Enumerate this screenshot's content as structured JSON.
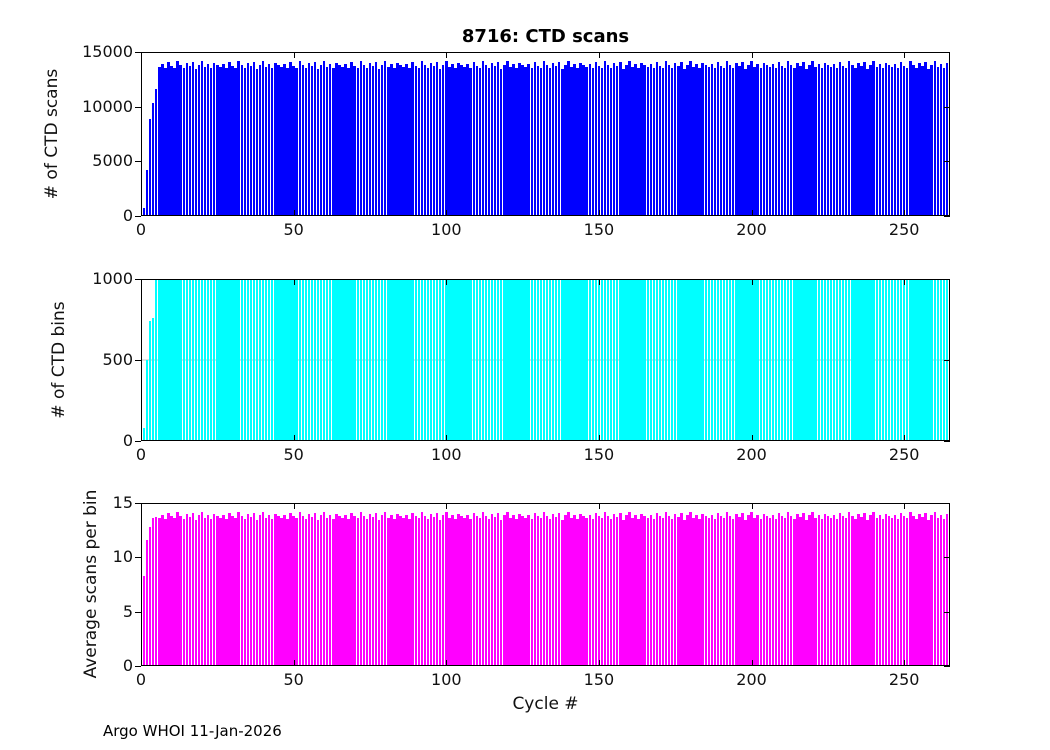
{
  "figure": {
    "title": "8716: CTD scans",
    "xlabel": "Cycle #",
    "footer": "Argo WHOI 11-Jan-2026",
    "x_ticks": [
      0,
      50,
      100,
      150,
      200,
      250
    ],
    "xlim": [
      0,
      265
    ],
    "background": "#ffffff",
    "axis_color": "#000000"
  },
  "chart_data": [
    {
      "type": "bar",
      "name": "ctd-scans",
      "title": "8716: CTD scans",
      "ylabel": "# of CTD scans",
      "color": "#0000ff",
      "ylim": [
        0,
        15000
      ],
      "yticks": [
        0,
        5000,
        10000,
        15000
      ],
      "grid": false,
      "values": [
        700,
        4200,
        8900,
        10300,
        11600,
        13650,
        13900,
        13520,
        14100,
        13760,
        13580,
        14200,
        13820,
        13540,
        13960,
        13700,
        14060,
        13470,
        13850,
        14150,
        13620,
        13920,
        13560,
        14010,
        13780,
        13650,
        13900,
        13520,
        14100,
        13760,
        13580,
        14200,
        13820,
        13540,
        13960,
        13700,
        14060,
        13470,
        13850,
        14150,
        13620,
        13920,
        13560,
        14010,
        13780,
        13650,
        13900,
        13520,
        14100,
        13760,
        13580,
        14200,
        13820,
        13540,
        13960,
        13700,
        14060,
        13470,
        13850,
        14150,
        13620,
        13920,
        13560,
        14010,
        13780,
        13650,
        13900,
        13520,
        14100,
        13760,
        13580,
        14200,
        13820,
        13540,
        13960,
        13700,
        14060,
        13470,
        13850,
        14150,
        13620,
        13920,
        13560,
        14010,
        13780,
        13650,
        13900,
        13520,
        14100,
        13760,
        13580,
        14200,
        13820,
        13540,
        13960,
        13700,
        14060,
        13470,
        13850,
        14150,
        13620,
        13920,
        13560,
        14010,
        13780,
        13650,
        13900,
        13520,
        14100,
        13760,
        13580,
        14200,
        13820,
        13540,
        13960,
        13700,
        14060,
        13470,
        13850,
        14150,
        13620,
        13920,
        13560,
        14010,
        13780,
        13650,
        13900,
        13520,
        14100,
        13760,
        13580,
        14200,
        13820,
        13540,
        13960,
        13700,
        14060,
        13470,
        13850,
        14150,
        13620,
        13920,
        13560,
        14010,
        13780,
        13650,
        13900,
        13520,
        14100,
        13760,
        13580,
        14200,
        13820,
        13540,
        13960,
        13700,
        14060,
        13470,
        13850,
        14150,
        13620,
        13920,
        13560,
        14010,
        13780,
        13650,
        13900,
        13520,
        14100,
        13760,
        13580,
        14200,
        13820,
        13540,
        13960,
        13700,
        14060,
        13470,
        13850,
        14150,
        13620,
        13920,
        13560,
        14010,
        13780,
        13650,
        13900,
        13520,
        14100,
        13760,
        13580,
        14200,
        13820,
        13540,
        13960,
        13700,
        14060,
        13470,
        13850,
        14150,
        13620,
        13920,
        13560,
        14010,
        13780,
        13650,
        13900,
        13520,
        14100,
        13760,
        13580,
        14200,
        13820,
        13540,
        13960,
        13700,
        14060,
        13470,
        13850,
        14150,
        13620,
        13920,
        13560,
        14010,
        13780,
        13650,
        13900,
        13520,
        14100,
        13760,
        13580,
        14200,
        13820,
        13540,
        13960,
        13700,
        14060,
        13470,
        13850,
        14150,
        13620,
        13920,
        13560,
        14010,
        13780,
        13650,
        13900,
        13520,
        14100,
        13760,
        13580,
        14200,
        13820,
        13540,
        13960,
        13700,
        14060,
        13470,
        13850,
        14150,
        13620,
        13920,
        13560,
        14010
      ]
    },
    {
      "type": "bar",
      "name": "ctd-bins",
      "ylabel": "# of CTD bins",
      "color": "#00ffff",
      "ylim": [
        0,
        1000
      ],
      "yticks": [
        0,
        500,
        1000
      ],
      "refline": 500,
      "grid": false,
      "values": [
        80,
        500,
        740,
        760,
        1000,
        1000,
        1000,
        1000,
        1000,
        1000,
        1000,
        1000,
        1000,
        1000,
        1000,
        1000,
        1000,
        1000,
        1000,
        1000,
        1000,
        1000,
        1000,
        1000,
        1000,
        1000,
        1000,
        1000,
        1000,
        1000,
        1000,
        1000,
        1000,
        1000,
        1000,
        1000,
        1000,
        1000,
        1000,
        1000,
        1000,
        1000,
        1000,
        1000,
        1000,
        1000,
        1000,
        1000,
        1000,
        1000,
        1000,
        1000,
        1000,
        1000,
        1000,
        1000,
        1000,
        1000,
        1000,
        1000,
        1000,
        1000,
        1000,
        1000,
        1000,
        1000,
        1000,
        1000,
        1000,
        1000,
        1000,
        1000,
        1000,
        1000,
        1000,
        1000,
        1000,
        1000,
        1000,
        1000,
        1000,
        1000,
        1000,
        1000,
        1000,
        1000,
        1000,
        1000,
        1000,
        1000,
        1000,
        1000,
        1000,
        1000,
        1000,
        1000,
        1000,
        1000,
        1000,
        1000,
        1000,
        1000,
        1000,
        1000,
        1000,
        1000,
        1000,
        1000,
        1000,
        1000,
        1000,
        1000,
        1000,
        1000,
        1000,
        1000,
        1000,
        1000,
        1000,
        1000,
        1000,
        1000,
        1000,
        1000,
        1000,
        1000,
        1000,
        1000,
        1000,
        1000,
        1000,
        1000,
        1000,
        1000,
        1000,
        1000,
        1000,
        1000,
        1000,
        1000,
        1000,
        1000,
        1000,
        1000,
        1000,
        1000,
        1000,
        1000,
        1000,
        1000,
        1000,
        1000,
        1000,
        1000,
        1000,
        1000,
        1000,
        1000,
        1000,
        1000,
        1000,
        1000,
        1000,
        1000,
        1000,
        1000,
        1000,
        1000,
        1000,
        1000,
        1000,
        1000,
        1000,
        1000,
        1000,
        1000,
        1000,
        1000,
        1000,
        1000,
        1000,
        1000,
        1000,
        1000,
        1000,
        1000,
        1000,
        1000,
        1000,
        1000,
        1000,
        1000,
        1000,
        1000,
        1000,
        1000,
        1000,
        1000,
        1000,
        1000,
        1000,
        1000,
        1000,
        1000,
        1000,
        1000,
        1000,
        1000,
        1000,
        1000,
        1000,
        1000,
        1000,
        1000,
        1000,
        1000,
        1000,
        1000,
        1000,
        1000,
        1000,
        1000,
        1000,
        1000,
        1000,
        1000,
        1000,
        1000,
        1000,
        1000,
        1000,
        1000,
        1000,
        1000,
        1000,
        1000,
        1000,
        1000,
        1000,
        1000,
        1000,
        1000,
        1000,
        1000,
        1000,
        1000,
        1000,
        1000,
        1000,
        1000,
        1000,
        1000,
        1000,
        1000,
        1000,
        1000,
        1000,
        1000,
        1000,
        1000,
        1000,
        1000,
        1000,
        1000
      ]
    },
    {
      "type": "bar",
      "name": "avg-scans-per-bin",
      "ylabel": "Average scans per bin",
      "xlabel": "Cycle #",
      "color": "#ff00ff",
      "ylim": [
        0,
        15
      ],
      "yticks": [
        0,
        5,
        10,
        15
      ],
      "grid": false,
      "values": [
        8.3,
        11.6,
        12.8,
        13.6,
        13.7,
        13.65,
        13.9,
        13.52,
        14.1,
        13.76,
        13.58,
        14.2,
        13.82,
        13.54,
        13.96,
        13.7,
        14.06,
        13.47,
        13.85,
        14.15,
        13.62,
        13.92,
        13.56,
        14.01,
        13.78,
        13.65,
        13.9,
        13.52,
        14.1,
        13.76,
        13.58,
        14.2,
        13.82,
        13.54,
        13.96,
        13.7,
        14.06,
        13.47,
        13.85,
        14.15,
        13.62,
        13.92,
        13.56,
        14.01,
        13.78,
        13.65,
        13.9,
        13.52,
        14.1,
        13.76,
        13.58,
        14.2,
        13.82,
        13.54,
        13.96,
        13.7,
        14.06,
        13.47,
        13.85,
        14.15,
        13.62,
        13.92,
        13.56,
        14.01,
        13.78,
        13.65,
        13.9,
        13.52,
        14.1,
        13.76,
        13.58,
        14.2,
        13.82,
        13.54,
        13.96,
        13.7,
        14.06,
        13.47,
        13.85,
        14.15,
        13.62,
        13.92,
        13.56,
        14.01,
        13.78,
        13.65,
        13.9,
        13.52,
        14.1,
        13.76,
        13.58,
        14.2,
        13.82,
        13.54,
        13.96,
        13.7,
        14.06,
        13.47,
        13.85,
        14.15,
        13.62,
        13.92,
        13.56,
        14.01,
        13.78,
        13.65,
        13.9,
        13.52,
        14.1,
        13.76,
        13.58,
        14.2,
        13.82,
        13.54,
        13.96,
        13.7,
        14.06,
        13.47,
        13.85,
        14.15,
        13.62,
        13.92,
        13.56,
        14.01,
        13.78,
        13.65,
        13.9,
        13.52,
        14.1,
        13.76,
        13.58,
        14.2,
        13.82,
        13.54,
        13.96,
        13.7,
        14.06,
        13.47,
        13.85,
        14.15,
        13.62,
        13.92,
        13.56,
        14.01,
        13.78,
        13.65,
        13.9,
        13.52,
        14.1,
        13.76,
        13.58,
        14.2,
        13.82,
        13.54,
        13.96,
        13.7,
        14.06,
        13.47,
        13.85,
        14.15,
        13.62,
        13.92,
        13.56,
        14.01,
        13.78,
        13.65,
        13.9,
        13.52,
        14.1,
        13.76,
        13.58,
        14.2,
        13.82,
        13.54,
        13.96,
        13.7,
        14.06,
        13.47,
        13.85,
        14.15,
        13.62,
        13.92,
        13.56,
        14.01,
        13.78,
        13.65,
        13.9,
        13.52,
        14.1,
        13.76,
        13.58,
        14.2,
        13.82,
        13.54,
        13.96,
        13.7,
        14.06,
        13.47,
        13.85,
        14.15,
        13.62,
        13.92,
        13.56,
        14.01,
        13.78,
        13.65,
        13.9,
        13.52,
        14.1,
        13.76,
        13.58,
        14.2,
        13.82,
        13.54,
        13.96,
        13.7,
        14.06,
        13.47,
        13.85,
        14.15,
        13.62,
        13.92,
        13.56,
        14.01,
        13.78,
        13.65,
        13.9,
        13.52,
        14.1,
        13.76,
        13.58,
        14.2,
        13.82,
        13.54,
        13.96,
        13.7,
        14.06,
        13.47,
        13.85,
        14.15,
        13.62,
        13.92,
        13.56,
        14.01,
        13.78,
        13.65,
        13.9,
        13.52,
        14.1,
        13.76,
        13.58,
        14.2,
        13.82,
        13.54,
        13.96,
        13.7,
        14.06,
        13.47,
        13.85,
        14.15,
        13.62,
        13.92,
        13.56,
        14.01
      ]
    }
  ]
}
